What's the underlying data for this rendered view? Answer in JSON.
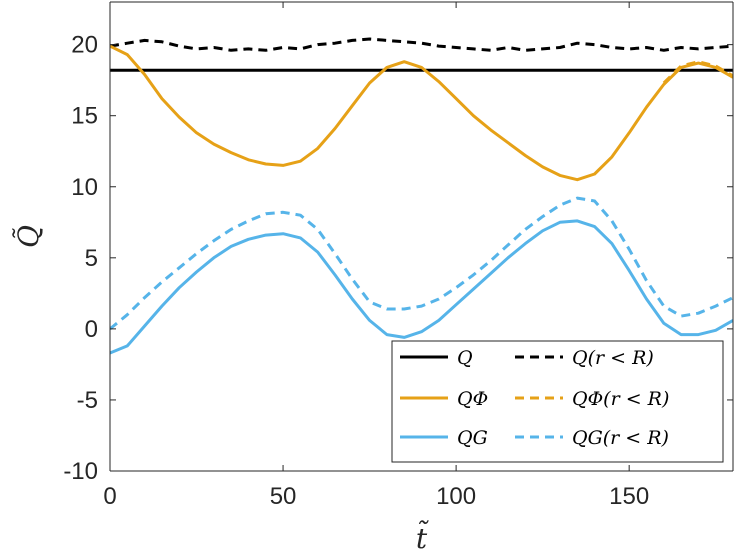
{
  "chart_data": {
    "type": "line",
    "title": "",
    "xlabel": "t̃",
    "ylabel": "Q̃",
    "xlim": [
      0,
      180
    ],
    "ylim": [
      -10,
      23
    ],
    "xticks": [
      0,
      50,
      100,
      150
    ],
    "yticks": [
      -10,
      -5,
      0,
      5,
      10,
      15,
      20
    ],
    "x_tick_labels": [
      "0",
      "50",
      "100",
      "150"
    ],
    "y_tick_labels": [
      "-10",
      "-5",
      "0",
      "5",
      "10",
      "15",
      "20"
    ],
    "legend_position": "bottom-right",
    "legend": [
      [
        "Q",
        "Q(r < R)"
      ],
      [
        "QΦ",
        "QΦ(r < R)"
      ],
      [
        "QG",
        "QG(r < R)"
      ]
    ],
    "series": [
      {
        "name": "Q",
        "color": "#000000",
        "style": "solid",
        "x": [
          0,
          180
        ],
        "y": [
          18.2,
          18.2
        ]
      },
      {
        "name": "Q(r < R)",
        "color": "#000000",
        "style": "dashed",
        "x": [
          0,
          5,
          10,
          15,
          20,
          25,
          30,
          35,
          40,
          45,
          50,
          55,
          60,
          65,
          70,
          75,
          80,
          85,
          90,
          95,
          100,
          105,
          110,
          115,
          120,
          125,
          130,
          135,
          140,
          145,
          150,
          155,
          160,
          165,
          170,
          175,
          180
        ],
        "y": [
          19.9,
          20.1,
          20.3,
          20.2,
          19.9,
          19.7,
          19.8,
          19.6,
          19.7,
          19.6,
          19.8,
          19.7,
          20.0,
          20.1,
          20.3,
          20.4,
          20.3,
          20.2,
          20.1,
          19.9,
          19.8,
          19.7,
          19.6,
          19.8,
          19.6,
          19.7,
          19.8,
          20.1,
          20.0,
          19.8,
          19.7,
          19.8,
          19.6,
          19.8,
          19.7,
          19.8,
          19.9
        ]
      },
      {
        "name": "QΦ",
        "color": "#E6A117",
        "style": "solid",
        "x": [
          0,
          5,
          10,
          15,
          20,
          25,
          30,
          35,
          40,
          45,
          50,
          55,
          60,
          65,
          70,
          75,
          80,
          85,
          90,
          95,
          100,
          105,
          110,
          115,
          120,
          125,
          130,
          135,
          140,
          145,
          150,
          155,
          160,
          165,
          170,
          175,
          180
        ],
        "y": [
          19.9,
          19.3,
          17.9,
          16.2,
          14.9,
          13.8,
          13.0,
          12.4,
          11.9,
          11.6,
          11.5,
          11.8,
          12.7,
          14.1,
          15.7,
          17.3,
          18.4,
          18.8,
          18.4,
          17.4,
          16.2,
          15.0,
          14.0,
          13.1,
          12.2,
          11.4,
          10.8,
          10.5,
          10.9,
          12.1,
          13.8,
          15.6,
          17.2,
          18.4,
          18.7,
          18.4,
          17.7
        ]
      },
      {
        "name": "QΦ(r < R)",
        "color": "#E6A117",
        "style": "dashed",
        "x": [
          160,
          165,
          170,
          175,
          180
        ],
        "y": [
          17.3,
          18.5,
          18.8,
          18.5,
          17.8
        ]
      },
      {
        "name": "QG",
        "color": "#56B4E9",
        "style": "solid",
        "x": [
          0,
          5,
          10,
          15,
          20,
          25,
          30,
          35,
          40,
          45,
          50,
          55,
          60,
          65,
          70,
          75,
          80,
          85,
          90,
          95,
          100,
          105,
          110,
          115,
          120,
          125,
          130,
          135,
          140,
          145,
          150,
          155,
          160,
          165,
          170,
          175,
          180
        ],
        "y": [
          -1.7,
          -1.2,
          0.2,
          1.6,
          2.9,
          4.0,
          5.0,
          5.8,
          6.3,
          6.6,
          6.7,
          6.4,
          5.4,
          3.8,
          2.1,
          0.6,
          -0.4,
          -0.6,
          -0.2,
          0.6,
          1.7,
          2.8,
          3.9,
          5.0,
          6.0,
          6.9,
          7.5,
          7.6,
          7.2,
          6.0,
          4.1,
          2.1,
          0.4,
          -0.4,
          -0.4,
          -0.1,
          0.6
        ]
      },
      {
        "name": "QG(r < R)",
        "color": "#56B4E9",
        "style": "dashed",
        "x": [
          0,
          5,
          10,
          15,
          20,
          25,
          30,
          35,
          40,
          45,
          50,
          55,
          60,
          65,
          70,
          75,
          80,
          85,
          90,
          95,
          100,
          105,
          110,
          115,
          120,
          125,
          130,
          135,
          140,
          145,
          150,
          155,
          160,
          165,
          170,
          175,
          180
        ],
        "y": [
          0.0,
          1.0,
          2.2,
          3.3,
          4.3,
          5.3,
          6.2,
          7.0,
          7.6,
          8.1,
          8.2,
          8.0,
          7.0,
          5.3,
          3.5,
          1.9,
          1.4,
          1.4,
          1.6,
          2.1,
          2.9,
          3.8,
          4.8,
          5.9,
          7.0,
          7.9,
          8.7,
          9.2,
          9.0,
          7.6,
          5.6,
          3.4,
          1.6,
          0.9,
          1.1,
          1.6,
          2.2
        ]
      }
    ]
  }
}
